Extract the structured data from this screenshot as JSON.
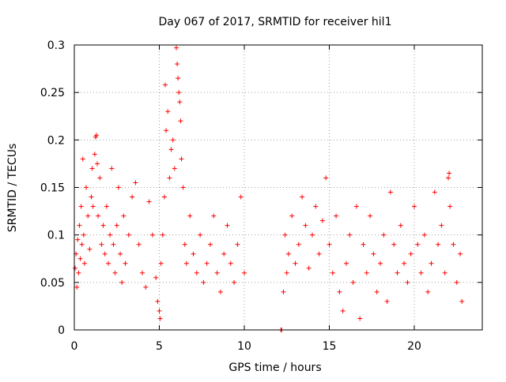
{
  "chart_data": {
    "type": "scatter",
    "title": "Day 067 of 2017, SRMTID for receiver hil1",
    "xlabel": "GPS time / hours",
    "ylabel": "SRMTID / TECUs",
    "xlim": [
      0,
      24
    ],
    "ylim": [
      0,
      0.3
    ],
    "xticks": [
      0,
      5,
      10,
      15,
      20
    ],
    "yticks": [
      0,
      0.05,
      0.1,
      0.15,
      0.2,
      0.25,
      0.3
    ],
    "xtick_labels": [
      "0",
      "5",
      "10",
      "15",
      "20"
    ],
    "ytick_labels": [
      "0",
      "0.05",
      "0.1",
      "0.15",
      "0.2",
      "0.25",
      "0.3"
    ],
    "grid": true,
    "marker": "+",
    "color": "#ff0000",
    "series": [
      {
        "name": "hil1",
        "points": [
          [
            0.05,
            0.065
          ],
          [
            0.1,
            0.08
          ],
          [
            0.15,
            0.045
          ],
          [
            0.2,
            0.095
          ],
          [
            0.25,
            0.06
          ],
          [
            0.3,
            0.11
          ],
          [
            0.35,
            0.075
          ],
          [
            0.4,
            0.13
          ],
          [
            0.45,
            0.09
          ],
          [
            0.5,
            0.18
          ],
          [
            0.55,
            0.1
          ],
          [
            0.6,
            0.07
          ],
          [
            0.7,
            0.15
          ],
          [
            0.8,
            0.12
          ],
          [
            0.9,
            0.085
          ],
          [
            1.0,
            0.14
          ],
          [
            1.05,
            0.17
          ],
          [
            1.1,
            0.13
          ],
          [
            1.2,
            0.185
          ],
          [
            1.25,
            0.203
          ],
          [
            1.3,
            0.205
          ],
          [
            1.35,
            0.175
          ],
          [
            1.4,
            0.12
          ],
          [
            1.5,
            0.16
          ],
          [
            1.6,
            0.09
          ],
          [
            1.7,
            0.11
          ],
          [
            1.8,
            0.08
          ],
          [
            1.9,
            0.13
          ],
          [
            2.0,
            0.07
          ],
          [
            2.1,
            0.1
          ],
          [
            2.2,
            0.17
          ],
          [
            2.3,
            0.09
          ],
          [
            2.4,
            0.06
          ],
          [
            2.5,
            0.11
          ],
          [
            2.6,
            0.15
          ],
          [
            2.7,
            0.08
          ],
          [
            2.8,
            0.05
          ],
          [
            2.9,
            0.12
          ],
          [
            3.0,
            0.07
          ],
          [
            3.2,
            0.1
          ],
          [
            3.4,
            0.14
          ],
          [
            3.6,
            0.155
          ],
          [
            3.8,
            0.09
          ],
          [
            4.0,
            0.06
          ],
          [
            4.2,
            0.045
          ],
          [
            4.4,
            0.135
          ],
          [
            4.6,
            0.1
          ],
          [
            4.8,
            0.055
          ],
          [
            4.9,
            0.03
          ],
          [
            5.0,
            0.02
          ],
          [
            5.05,
            0.012
          ],
          [
            5.1,
            0.07
          ],
          [
            5.2,
            0.1
          ],
          [
            5.3,
            0.14
          ],
          [
            5.35,
            0.258
          ],
          [
            5.4,
            0.21
          ],
          [
            5.5,
            0.23
          ],
          [
            5.6,
            0.16
          ],
          [
            5.7,
            0.19
          ],
          [
            5.8,
            0.2
          ],
          [
            5.9,
            0.17
          ],
          [
            6.0,
            0.297
          ],
          [
            6.05,
            0.28
          ],
          [
            6.1,
            0.265
          ],
          [
            6.15,
            0.25
          ],
          [
            6.2,
            0.24
          ],
          [
            6.25,
            0.22
          ],
          [
            6.3,
            0.18
          ],
          [
            6.4,
            0.15
          ],
          [
            6.5,
            0.09
          ],
          [
            6.6,
            0.07
          ],
          [
            6.8,
            0.12
          ],
          [
            7.0,
            0.08
          ],
          [
            7.2,
            0.06
          ],
          [
            7.4,
            0.1
          ],
          [
            7.6,
            0.05
          ],
          [
            7.8,
            0.07
          ],
          [
            8.0,
            0.09
          ],
          [
            8.2,
            0.12
          ],
          [
            8.4,
            0.06
          ],
          [
            8.6,
            0.04
          ],
          [
            8.8,
            0.08
          ],
          [
            9.0,
            0.11
          ],
          [
            9.2,
            0.07
          ],
          [
            9.4,
            0.05
          ],
          [
            9.6,
            0.09
          ],
          [
            9.8,
            0.14
          ],
          [
            10.0,
            0.06
          ],
          [
            12.15,
            0.0
          ],
          [
            12.2,
            0.0
          ],
          [
            12.3,
            0.04
          ],
          [
            12.4,
            0.1
          ],
          [
            12.5,
            0.06
          ],
          [
            12.6,
            0.08
          ],
          [
            12.8,
            0.12
          ],
          [
            13.0,
            0.07
          ],
          [
            13.2,
            0.09
          ],
          [
            13.4,
            0.14
          ],
          [
            13.6,
            0.11
          ],
          [
            13.8,
            0.065
          ],
          [
            14.0,
            0.1
          ],
          [
            14.2,
            0.13
          ],
          [
            14.4,
            0.08
          ],
          [
            14.6,
            0.115
          ],
          [
            14.8,
            0.16
          ],
          [
            15.0,
            0.09
          ],
          [
            15.2,
            0.06
          ],
          [
            15.4,
            0.12
          ],
          [
            15.6,
            0.04
          ],
          [
            15.8,
            0.02
          ],
          [
            16.0,
            0.07
          ],
          [
            16.2,
            0.1
          ],
          [
            16.4,
            0.05
          ],
          [
            16.6,
            0.13
          ],
          [
            16.8,
            0.012
          ],
          [
            17.0,
            0.09
          ],
          [
            17.2,
            0.06
          ],
          [
            17.4,
            0.12
          ],
          [
            17.6,
            0.08
          ],
          [
            17.8,
            0.04
          ],
          [
            18.0,
            0.07
          ],
          [
            18.2,
            0.1
          ],
          [
            18.4,
            0.03
          ],
          [
            18.6,
            0.145
          ],
          [
            18.8,
            0.09
          ],
          [
            19.0,
            0.06
          ],
          [
            19.2,
            0.11
          ],
          [
            19.4,
            0.07
          ],
          [
            19.6,
            0.05
          ],
          [
            19.8,
            0.08
          ],
          [
            20.0,
            0.13
          ],
          [
            20.2,
            0.09
          ],
          [
            20.4,
            0.06
          ],
          [
            20.6,
            0.1
          ],
          [
            20.8,
            0.04
          ],
          [
            21.0,
            0.07
          ],
          [
            21.2,
            0.145
          ],
          [
            21.4,
            0.09
          ],
          [
            21.6,
            0.11
          ],
          [
            21.8,
            0.06
          ],
          [
            22.0,
            0.16
          ],
          [
            22.05,
            0.165
          ],
          [
            22.1,
            0.13
          ],
          [
            22.3,
            0.09
          ],
          [
            22.5,
            0.05
          ],
          [
            22.7,
            0.08
          ],
          [
            22.8,
            0.03
          ]
        ]
      }
    ]
  }
}
